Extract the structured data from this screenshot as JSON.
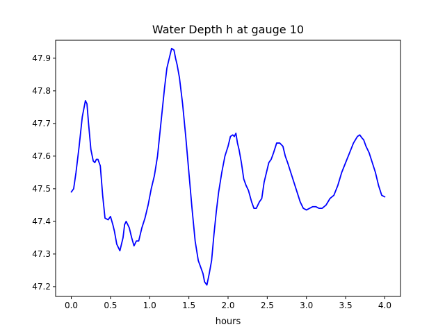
{
  "chart_data": {
    "type": "line",
    "title": "Water Depth h at gauge 10",
    "xlabel": "hours",
    "ylabel": "",
    "xlim": [
      -0.2,
      4.2
    ],
    "ylim": [
      47.17,
      47.955
    ],
    "xticks": [
      0.0,
      0.5,
      1.0,
      1.5,
      2.0,
      2.5,
      3.0,
      3.5,
      4.0
    ],
    "xtick_labels": [
      "0.0",
      "0.5",
      "1.0",
      "1.5",
      "2.0",
      "2.5",
      "3.0",
      "3.5",
      "4.0"
    ],
    "yticks": [
      47.2,
      47.3,
      47.4,
      47.5,
      47.6,
      47.7,
      47.8,
      47.9
    ],
    "ytick_labels": [
      "47.2",
      "47.3",
      "47.4",
      "47.5",
      "47.6",
      "47.7",
      "47.8",
      "47.9"
    ],
    "grid": false,
    "series": [
      {
        "color": "#0000ff",
        "x": [
          0.0,
          0.03,
          0.06,
          0.1,
          0.14,
          0.18,
          0.2,
          0.22,
          0.25,
          0.28,
          0.3,
          0.32,
          0.34,
          0.37,
          0.4,
          0.43,
          0.47,
          0.5,
          0.53,
          0.55,
          0.58,
          0.62,
          0.66,
          0.68,
          0.7,
          0.74,
          0.77,
          0.8,
          0.83,
          0.86,
          0.9,
          0.94,
          0.98,
          1.02,
          1.06,
          1.1,
          1.13,
          1.16,
          1.19,
          1.22,
          1.25,
          1.28,
          1.31,
          1.33,
          1.35,
          1.38,
          1.42,
          1.46,
          1.5,
          1.54,
          1.58,
          1.62,
          1.65,
          1.68,
          1.7,
          1.73,
          1.76,
          1.79,
          1.82,
          1.85,
          1.88,
          1.92,
          1.96,
          2.0,
          2.03,
          2.06,
          2.08,
          2.1,
          2.12,
          2.14,
          2.17,
          2.2,
          2.23,
          2.26,
          2.3,
          2.33,
          2.36,
          2.4,
          2.43,
          2.46,
          2.49,
          2.52,
          2.55,
          2.58,
          2.62,
          2.66,
          2.7,
          2.73,
          2.76,
          2.8,
          2.84,
          2.88,
          2.92,
          2.96,
          3.0,
          3.04,
          3.08,
          3.12,
          3.16,
          3.2,
          3.25,
          3.3,
          3.35,
          3.4,
          3.45,
          3.5,
          3.55,
          3.6,
          3.65,
          3.68,
          3.71,
          3.73,
          3.76,
          3.8,
          3.84,
          3.88,
          3.92,
          3.96,
          4.0
        ],
        "y": [
          47.49,
          47.5,
          47.55,
          47.63,
          47.72,
          47.77,
          47.76,
          47.7,
          47.62,
          47.585,
          47.58,
          47.59,
          47.59,
          47.57,
          47.48,
          47.41,
          47.405,
          47.415,
          47.39,
          47.37,
          47.33,
          47.31,
          47.35,
          47.39,
          47.4,
          47.38,
          47.35,
          47.325,
          47.34,
          47.34,
          47.38,
          47.41,
          47.45,
          47.5,
          47.54,
          47.6,
          47.67,
          47.74,
          47.81,
          47.87,
          47.9,
          47.93,
          47.925,
          47.9,
          47.88,
          47.84,
          47.76,
          47.66,
          47.55,
          47.44,
          47.34,
          47.28,
          47.26,
          47.24,
          47.215,
          47.205,
          47.24,
          47.28,
          47.36,
          47.43,
          47.49,
          47.55,
          47.6,
          47.63,
          47.66,
          47.665,
          47.66,
          47.67,
          47.64,
          47.62,
          47.58,
          47.53,
          47.51,
          47.495,
          47.46,
          47.44,
          47.44,
          47.46,
          47.47,
          47.52,
          47.55,
          47.58,
          47.59,
          47.61,
          47.64,
          47.64,
          47.63,
          47.6,
          47.58,
          47.55,
          47.52,
          47.49,
          47.46,
          47.44,
          47.435,
          47.44,
          47.445,
          47.445,
          47.44,
          47.44,
          47.45,
          47.47,
          47.48,
          47.51,
          47.55,
          47.58,
          47.61,
          47.64,
          47.66,
          47.665,
          47.655,
          47.65,
          47.63,
          47.61,
          47.58,
          47.55,
          47.51,
          47.48,
          47.475
        ]
      }
    ]
  }
}
